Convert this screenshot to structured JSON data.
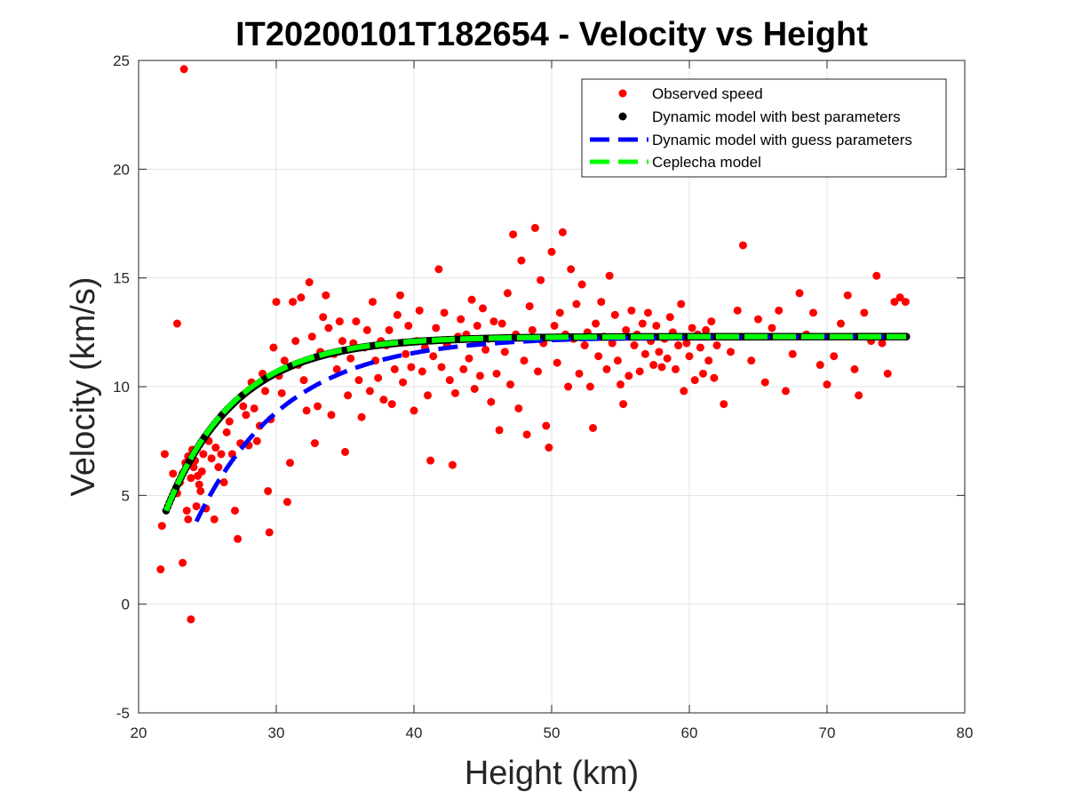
{
  "chart_data": {
    "type": "scatter",
    "title": "IT20200101T182654 - Velocity vs Height",
    "xlabel": "Height (km)",
    "ylabel": "Velocity (km/s)",
    "xlim": [
      20,
      80
    ],
    "ylim": [
      -5,
      25
    ],
    "xticks": [
      20,
      30,
      40,
      50,
      60,
      70,
      80
    ],
    "yticks": [
      -5,
      0,
      5,
      10,
      15,
      20,
      25
    ],
    "grid": true,
    "legend_position": "top-right",
    "series": [
      {
        "name": "Observed speed",
        "kind": "markers",
        "color": "#ff0000",
        "points": [
          [
            21.6,
            1.6
          ],
          [
            21.7,
            3.6
          ],
          [
            21.9,
            6.9
          ],
          [
            22.5,
            6.0
          ],
          [
            22.8,
            12.9
          ],
          [
            23.2,
            1.9
          ],
          [
            23.3,
            24.6
          ],
          [
            23.5,
            4.3
          ],
          [
            23.6,
            3.9
          ],
          [
            23.8,
            -0.7
          ],
          [
            22.8,
            5.1
          ],
          [
            23.0,
            5.6
          ],
          [
            23.2,
            6.0
          ],
          [
            23.4,
            6.5
          ],
          [
            23.6,
            6.8
          ],
          [
            23.8,
            5.8
          ],
          [
            24.0,
            6.3
          ],
          [
            24.2,
            4.5
          ],
          [
            24.4,
            5.5
          ],
          [
            24.6,
            6.1
          ],
          [
            23.9,
            7.1
          ],
          [
            24.1,
            6.6
          ],
          [
            24.3,
            5.9
          ],
          [
            24.5,
            5.2
          ],
          [
            24.7,
            6.9
          ],
          [
            24.9,
            4.4
          ],
          [
            25.1,
            7.5
          ],
          [
            25.3,
            6.7
          ],
          [
            25.5,
            3.9
          ],
          [
            25.6,
            7.2
          ],
          [
            25.8,
            6.3
          ],
          [
            26.0,
            6.9
          ],
          [
            26.2,
            5.6
          ],
          [
            26.4,
            7.9
          ],
          [
            26.6,
            8.4
          ],
          [
            26.8,
            6.9
          ],
          [
            27.0,
            4.3
          ],
          [
            27.2,
            3.0
          ],
          [
            27.4,
            7.4
          ],
          [
            27.6,
            9.1
          ],
          [
            27.8,
            8.7
          ],
          [
            28.0,
            7.3
          ],
          [
            28.2,
            10.2
          ],
          [
            28.4,
            9.0
          ],
          [
            28.6,
            7.5
          ],
          [
            28.8,
            8.2
          ],
          [
            29.0,
            10.6
          ],
          [
            29.2,
            9.8
          ],
          [
            29.4,
            5.2
          ],
          [
            29.5,
            3.3
          ],
          [
            29.6,
            8.5
          ],
          [
            29.8,
            11.8
          ],
          [
            30.0,
            13.9
          ],
          [
            30.2,
            10.5
          ],
          [
            30.4,
            9.7
          ],
          [
            30.6,
            11.2
          ],
          [
            30.8,
            4.7
          ],
          [
            31.0,
            6.5
          ],
          [
            31.2,
            13.9
          ],
          [
            31.4,
            12.1
          ],
          [
            31.6,
            11.0
          ],
          [
            31.8,
            14.1
          ],
          [
            32.0,
            10.3
          ],
          [
            32.2,
            8.9
          ],
          [
            32.4,
            14.8
          ],
          [
            32.6,
            12.3
          ],
          [
            32.8,
            7.4
          ],
          [
            33.0,
            9.1
          ],
          [
            33.2,
            11.6
          ],
          [
            33.4,
            13.2
          ],
          [
            33.6,
            14.2
          ],
          [
            33.8,
            12.7
          ],
          [
            34.0,
            8.7
          ],
          [
            34.2,
            11.5
          ],
          [
            34.4,
            10.8
          ],
          [
            34.6,
            13.0
          ],
          [
            34.8,
            12.1
          ],
          [
            35.0,
            7.0
          ],
          [
            35.2,
            9.6
          ],
          [
            35.4,
            11.3
          ],
          [
            35.6,
            12.0
          ],
          [
            35.8,
            13.0
          ],
          [
            36.0,
            10.3
          ],
          [
            36.2,
            8.6
          ],
          [
            36.4,
            11.8
          ],
          [
            36.6,
            12.6
          ],
          [
            36.8,
            9.8
          ],
          [
            37.0,
            13.9
          ],
          [
            37.2,
            11.2
          ],
          [
            37.4,
            10.4
          ],
          [
            37.6,
            12.1
          ],
          [
            37.8,
            9.4
          ],
          [
            38.0,
            11.9
          ],
          [
            38.2,
            12.6
          ],
          [
            38.4,
            9.2
          ],
          [
            38.6,
            10.8
          ],
          [
            38.8,
            13.3
          ],
          [
            39.0,
            14.2
          ],
          [
            39.2,
            10.2
          ],
          [
            39.4,
            11.5
          ],
          [
            39.6,
            12.8
          ],
          [
            39.8,
            10.9
          ],
          [
            40.0,
            8.9
          ],
          [
            40.2,
            12.1
          ],
          [
            40.4,
            13.5
          ],
          [
            40.6,
            10.7
          ],
          [
            40.8,
            11.8
          ],
          [
            41.0,
            9.6
          ],
          [
            41.2,
            6.6
          ],
          [
            41.4,
            11.4
          ],
          [
            41.6,
            12.7
          ],
          [
            41.8,
            15.4
          ],
          [
            42.0,
            10.9
          ],
          [
            42.2,
            13.4
          ],
          [
            42.4,
            11.9
          ],
          [
            42.6,
            10.3
          ],
          [
            42.8,
            6.4
          ],
          [
            43.0,
            9.7
          ],
          [
            43.2,
            12.3
          ],
          [
            43.4,
            13.1
          ],
          [
            43.6,
            10.8
          ],
          [
            43.8,
            12.4
          ],
          [
            44.0,
            11.3
          ],
          [
            44.2,
            14.0
          ],
          [
            44.4,
            9.9
          ],
          [
            44.6,
            12.8
          ],
          [
            44.8,
            10.5
          ],
          [
            45.0,
            13.6
          ],
          [
            45.2,
            11.7
          ],
          [
            45.4,
            12.2
          ],
          [
            45.6,
            9.3
          ],
          [
            45.8,
            13.0
          ],
          [
            46.0,
            10.6
          ],
          [
            46.2,
            8.0
          ],
          [
            46.4,
            12.9
          ],
          [
            46.6,
            11.6
          ],
          [
            46.8,
            14.3
          ],
          [
            47.0,
            10.1
          ],
          [
            47.2,
            17.0
          ],
          [
            47.4,
            12.4
          ],
          [
            47.6,
            9.0
          ],
          [
            47.8,
            15.8
          ],
          [
            48.0,
            11.2
          ],
          [
            48.2,
            7.8
          ],
          [
            48.4,
            13.7
          ],
          [
            48.6,
            12.6
          ],
          [
            48.8,
            17.3
          ],
          [
            49.0,
            10.7
          ],
          [
            49.2,
            14.9
          ],
          [
            49.4,
            12.0
          ],
          [
            49.6,
            8.2
          ],
          [
            49.8,
            7.2
          ],
          [
            50.0,
            16.2
          ],
          [
            50.2,
            12.8
          ],
          [
            50.4,
            11.1
          ],
          [
            50.6,
            13.4
          ],
          [
            50.8,
            17.1
          ],
          [
            51.0,
            12.4
          ],
          [
            51.2,
            10.0
          ],
          [
            51.4,
            15.4
          ],
          [
            51.6,
            12.2
          ],
          [
            51.8,
            13.8
          ],
          [
            52.0,
            10.6
          ],
          [
            52.2,
            14.7
          ],
          [
            52.4,
            11.9
          ],
          [
            52.6,
            12.5
          ],
          [
            52.8,
            10.0
          ],
          [
            53.0,
            8.1
          ],
          [
            53.2,
            12.9
          ],
          [
            53.4,
            11.4
          ],
          [
            53.6,
            13.9
          ],
          [
            53.8,
            12.3
          ],
          [
            54.0,
            10.8
          ],
          [
            54.2,
            15.1
          ],
          [
            54.4,
            12.0
          ],
          [
            54.6,
            13.3
          ],
          [
            54.8,
            11.2
          ],
          [
            55.0,
            10.1
          ],
          [
            55.2,
            9.2
          ],
          [
            55.4,
            12.6
          ],
          [
            55.6,
            10.5
          ],
          [
            55.8,
            13.5
          ],
          [
            56.0,
            11.9
          ],
          [
            56.2,
            12.4
          ],
          [
            56.4,
            10.7
          ],
          [
            56.6,
            12.9
          ],
          [
            56.8,
            11.5
          ],
          [
            57.0,
            13.4
          ],
          [
            57.2,
            12.1
          ],
          [
            57.4,
            11.0
          ],
          [
            57.6,
            12.8
          ],
          [
            57.8,
            11.6
          ],
          [
            58.0,
            10.9
          ],
          [
            58.2,
            12.2
          ],
          [
            58.4,
            11.3
          ],
          [
            58.6,
            13.2
          ],
          [
            58.8,
            12.5
          ],
          [
            59.0,
            10.8
          ],
          [
            59.2,
            11.9
          ],
          [
            59.4,
            13.8
          ],
          [
            59.6,
            9.8
          ],
          [
            59.8,
            12.0
          ],
          [
            60.0,
            11.4
          ],
          [
            60.2,
            12.7
          ],
          [
            60.4,
            10.3
          ],
          [
            60.6,
            12.4
          ],
          [
            60.8,
            11.8
          ],
          [
            61.0,
            10.6
          ],
          [
            61.2,
            12.6
          ],
          [
            61.4,
            11.2
          ],
          [
            61.6,
            13.0
          ],
          [
            61.8,
            10.4
          ],
          [
            62.0,
            11.9
          ],
          [
            62.5,
            9.2
          ],
          [
            63.0,
            11.6
          ],
          [
            63.5,
            13.5
          ],
          [
            63.9,
            16.5
          ],
          [
            64.5,
            11.2
          ],
          [
            65.0,
            13.1
          ],
          [
            65.5,
            10.2
          ],
          [
            66.0,
            12.7
          ],
          [
            66.5,
            13.5
          ],
          [
            67.0,
            9.8
          ],
          [
            67.5,
            11.5
          ],
          [
            68.0,
            14.3
          ],
          [
            68.5,
            12.4
          ],
          [
            69.0,
            13.4
          ],
          [
            69.5,
            11.0
          ],
          [
            70.0,
            10.1
          ],
          [
            70.5,
            11.4
          ],
          [
            71.0,
            12.9
          ],
          [
            71.5,
            14.2
          ],
          [
            72.0,
            10.8
          ],
          [
            72.3,
            9.6
          ],
          [
            72.7,
            13.4
          ],
          [
            73.2,
            12.1
          ],
          [
            73.6,
            15.1
          ],
          [
            74.0,
            12.0
          ],
          [
            74.4,
            10.6
          ],
          [
            74.9,
            13.9
          ],
          [
            75.3,
            14.1
          ],
          [
            75.7,
            13.9
          ]
        ]
      },
      {
        "name": "Dynamic model with best parameters",
        "kind": "dense-markers",
        "color": "#000000",
        "curve": {
          "vinf": 12.3,
          "v0": 4.3,
          "h0": 22.0,
          "scale": 5.1,
          "hmax": 75.8
        }
      },
      {
        "name": "Dynamic model with guess parameters",
        "kind": "dashed-line",
        "color": "#0000ff",
        "curve": {
          "vinf": 12.3,
          "v0": 3.8,
          "h0": 24.2,
          "scale": 6.5,
          "hmax": 75.8
        }
      },
      {
        "name": "Ceplecha model",
        "kind": "dashed-line",
        "color": "#00ff00",
        "curve": {
          "vinf": 12.3,
          "v0": 4.3,
          "h0": 22.0,
          "scale": 5.0,
          "hmax": 75.8
        }
      }
    ]
  }
}
